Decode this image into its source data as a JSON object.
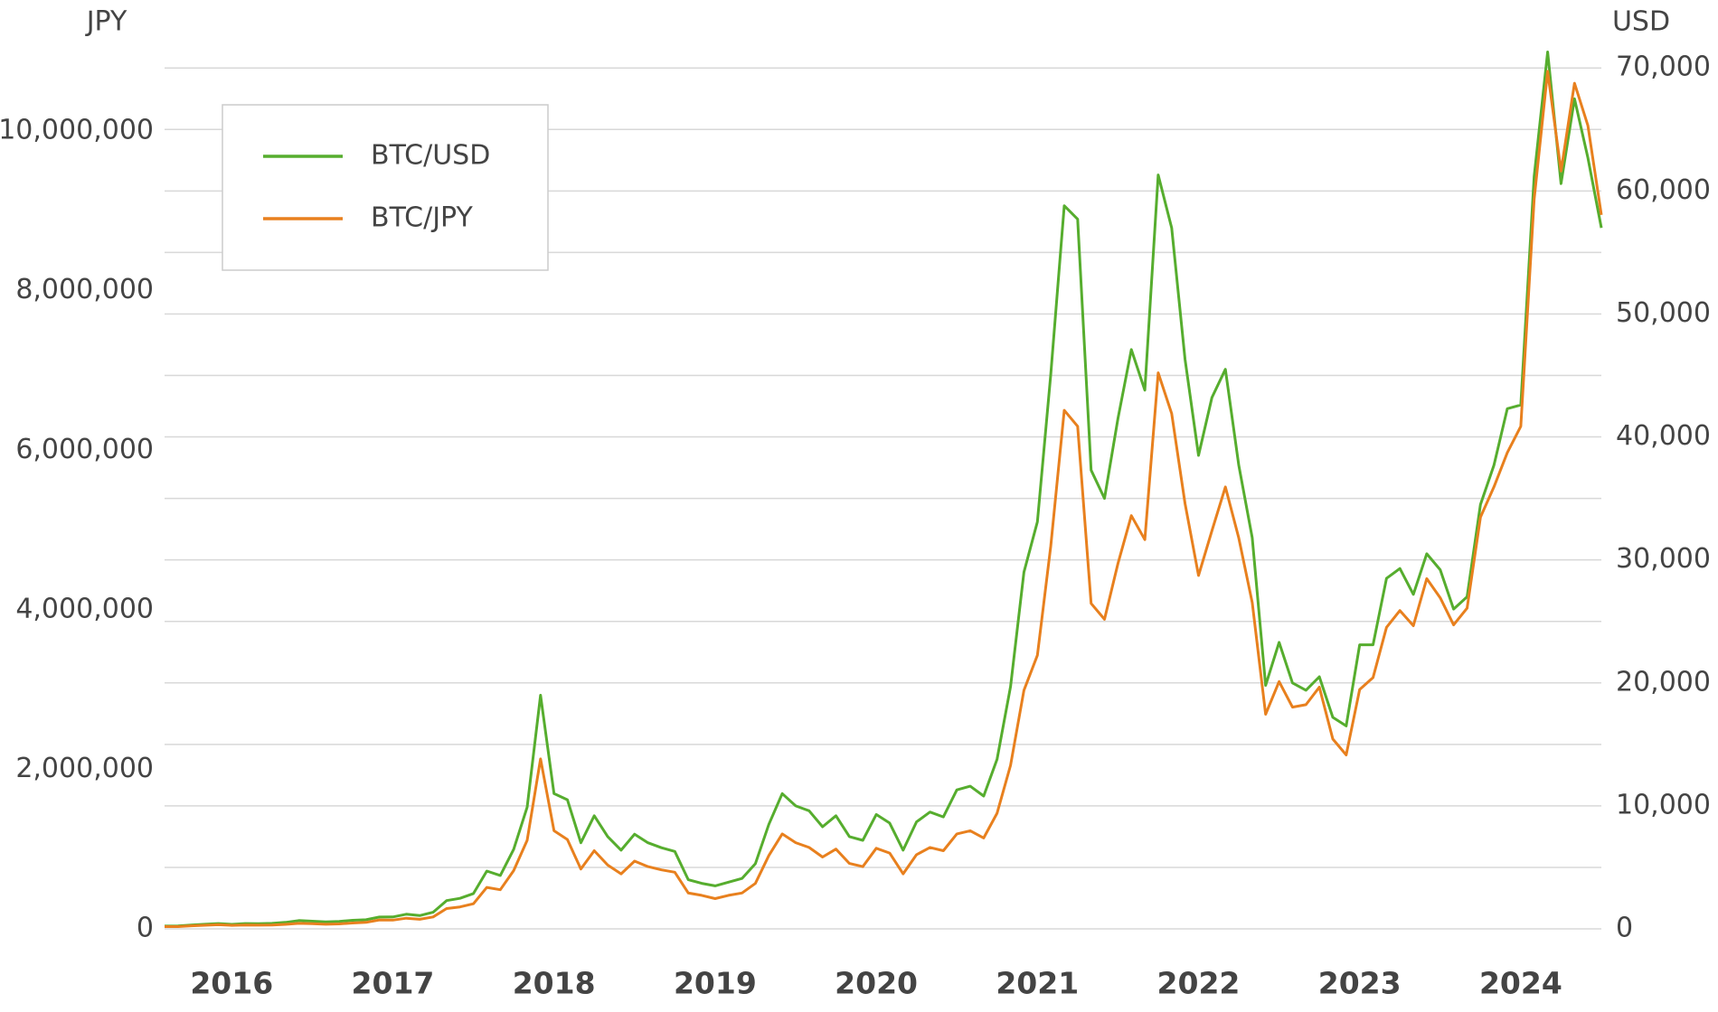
{
  "chart_data": {
    "type": "line",
    "y_label": "JPY",
    "y2_label": "USD",
    "categories": [
      null,
      null,
      null,
      null,
      null,
      "2016",
      null,
      null,
      null,
      null,
      null,
      null,
      null,
      null,
      null,
      null,
      null,
      "2017",
      null,
      null,
      null,
      null,
      null,
      null,
      null,
      null,
      null,
      null,
      null,
      "2018",
      null,
      null,
      null,
      null,
      null,
      null,
      null,
      null,
      null,
      null,
      null,
      "2019",
      null,
      null,
      null,
      null,
      null,
      null,
      null,
      null,
      null,
      null,
      null,
      "2020",
      null,
      null,
      null,
      null,
      null,
      null,
      null,
      null,
      null,
      null,
      null,
      "2021",
      null,
      null,
      null,
      null,
      null,
      null,
      null,
      null,
      null,
      null,
      null,
      "2022",
      null,
      null,
      null,
      null,
      null,
      null,
      null,
      null,
      null,
      null,
      null,
      "2023",
      null,
      null,
      null,
      null,
      null,
      null,
      null,
      null,
      null,
      null,
      null,
      "2024",
      null,
      null,
      null,
      null,
      null,
      null
    ],
    "series": [
      {
        "name": "BTC/USD",
        "color": "#56ad2e",
        "axis": "y2",
        "values": [
          230,
          236,
          314,
          378,
          430,
          370,
          437,
          416,
          448,
          531,
          673,
          624,
          575,
          608,
          700,
          742,
          963,
          970,
          1190,
          1080,
          1350,
          2300,
          2480,
          2870,
          4700,
          4340,
          6470,
          9900,
          19000,
          11000,
          10500,
          7000,
          9200,
          7500,
          6400,
          7700,
          7000,
          6600,
          6300,
          4000,
          3700,
          3500,
          3800,
          4100,
          5300,
          8500,
          11000,
          10000,
          9600,
          8300,
          9200,
          7500,
          7200,
          9300,
          8600,
          6400,
          8700,
          9500,
          9100,
          11300,
          11600,
          10800,
          13800,
          19700,
          29000,
          33100,
          45100,
          58800,
          57700,
          37300,
          35000,
          41500,
          47100,
          43800,
          61300,
          57000,
          46300,
          38500,
          43200,
          45500,
          37700,
          31800,
          19800,
          23300,
          20000,
          19400,
          20500,
          17200,
          16500,
          23100,
          23100,
          28500,
          29300,
          27200,
          30500,
          29200,
          26000,
          27000,
          34500,
          37700,
          42300,
          42600,
          61200,
          71300,
          60600,
          67500,
          62700,
          57000
        ]
      },
      {
        "name": "BTC/JPY",
        "color": "#e8801e",
        "axis": "y",
        "values": [
          28000,
          28500,
          38000,
          45000,
          52000,
          44000,
          49000,
          47000,
          48000,
          57000,
          69000,
          66000,
          58000,
          62000,
          74000,
          82000,
          112000,
          110000,
          134000,
          120000,
          150000,
          255000,
          275000,
          315000,
          520000,
          490000,
          730000,
          1110000,
          2130000,
          1230000,
          1120000,
          750000,
          980000,
          800000,
          690000,
          850000,
          780000,
          740000,
          710000,
          450000,
          420000,
          380000,
          420000,
          450000,
          570000,
          920000,
          1190000,
          1080000,
          1020000,
          900000,
          1000000,
          820000,
          780000,
          1010000,
          950000,
          690000,
          930000,
          1020000,
          980000,
          1190000,
          1230000,
          1140000,
          1450000,
          2050000,
          2990000,
          3430000,
          4800000,
          6500000,
          6300000,
          4080000,
          3880000,
          4580000,
          5180000,
          4880000,
          6970000,
          6460000,
          5330000,
          4430000,
          4990000,
          5540000,
          4900000,
          4090000,
          2690000,
          3100000,
          2780000,
          2810000,
          3030000,
          2380000,
          2180000,
          3000000,
          3150000,
          3780000,
          3990000,
          3800000,
          4390000,
          4150000,
          3810000,
          4020000,
          5160000,
          5540000,
          5970000,
          6300000,
          9150000,
          10750000,
          9500000,
          10600000,
          10070000,
          8950000
        ]
      }
    ],
    "ylim": [
      0,
      11100000
    ],
    "yticks": [
      0,
      {
        "value": 2000000,
        "label": "2,000,000"
      },
      {
        "value": 4000000,
        "label": "4,000,000"
      },
      {
        "value": 6000000,
        "label": "6,000,000"
      },
      {
        "value": 8000000,
        "label": "8,000,000"
      },
      {
        "value": 10000000,
        "label": "10,000,000"
      }
    ],
    "y2lim": [
      0,
      72000
    ],
    "y2ticks": [
      0,
      {
        "value": 10000,
        "label": "10,000"
      },
      {
        "value": 20000,
        "label": "20,000"
      },
      {
        "value": 30000,
        "label": "30,000"
      },
      {
        "value": 40000,
        "label": "40,000"
      },
      {
        "value": 50000,
        "label": "50,000"
      },
      {
        "value": 60000,
        "label": "60,000"
      },
      {
        "value": 70000,
        "label": "70,000"
      }
    ],
    "y2minorticks": [
      5000,
      15000,
      25000,
      35000,
      45000,
      55000,
      65000
    ],
    "grid": true,
    "legend": "upper left"
  }
}
